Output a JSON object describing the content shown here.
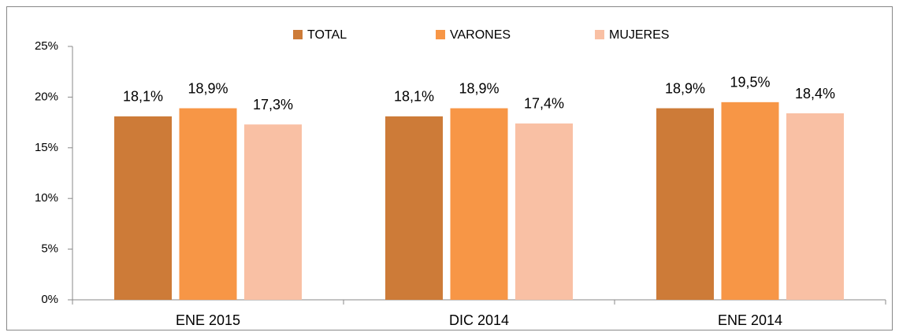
{
  "chart_data": {
    "type": "bar",
    "categories": [
      "ENE 2015",
      "DIC 2014",
      "ENE 2014"
    ],
    "series": [
      {
        "name": "TOTAL",
        "color": "#cd7b38",
        "values": [
          18.1,
          18.1,
          18.9
        ],
        "value_labels": [
          "18,1%",
          "18,1%",
          "18,9%"
        ]
      },
      {
        "name": "VARONES",
        "color": "#f79646",
        "values": [
          18.9,
          18.9,
          19.5
        ],
        "value_labels": [
          "18,9%",
          "18,9%",
          "19,5%"
        ]
      },
      {
        "name": "MUJERES",
        "color": "#f9c0a4",
        "values": [
          17.3,
          17.4,
          18.4
        ],
        "value_labels": [
          "17,3%",
          "17,4%",
          "18,4%"
        ]
      }
    ],
    "ylim": [
      0,
      25
    ],
    "yticks": [
      {
        "value": 0,
        "label": "0%"
      },
      {
        "value": 5,
        "label": "5%"
      },
      {
        "value": 10,
        "label": "10%"
      },
      {
        "value": 15,
        "label": "15%"
      },
      {
        "value": 20,
        "label": "20%"
      },
      {
        "value": 25,
        "label": "25%"
      }
    ],
    "legend": "top"
  }
}
